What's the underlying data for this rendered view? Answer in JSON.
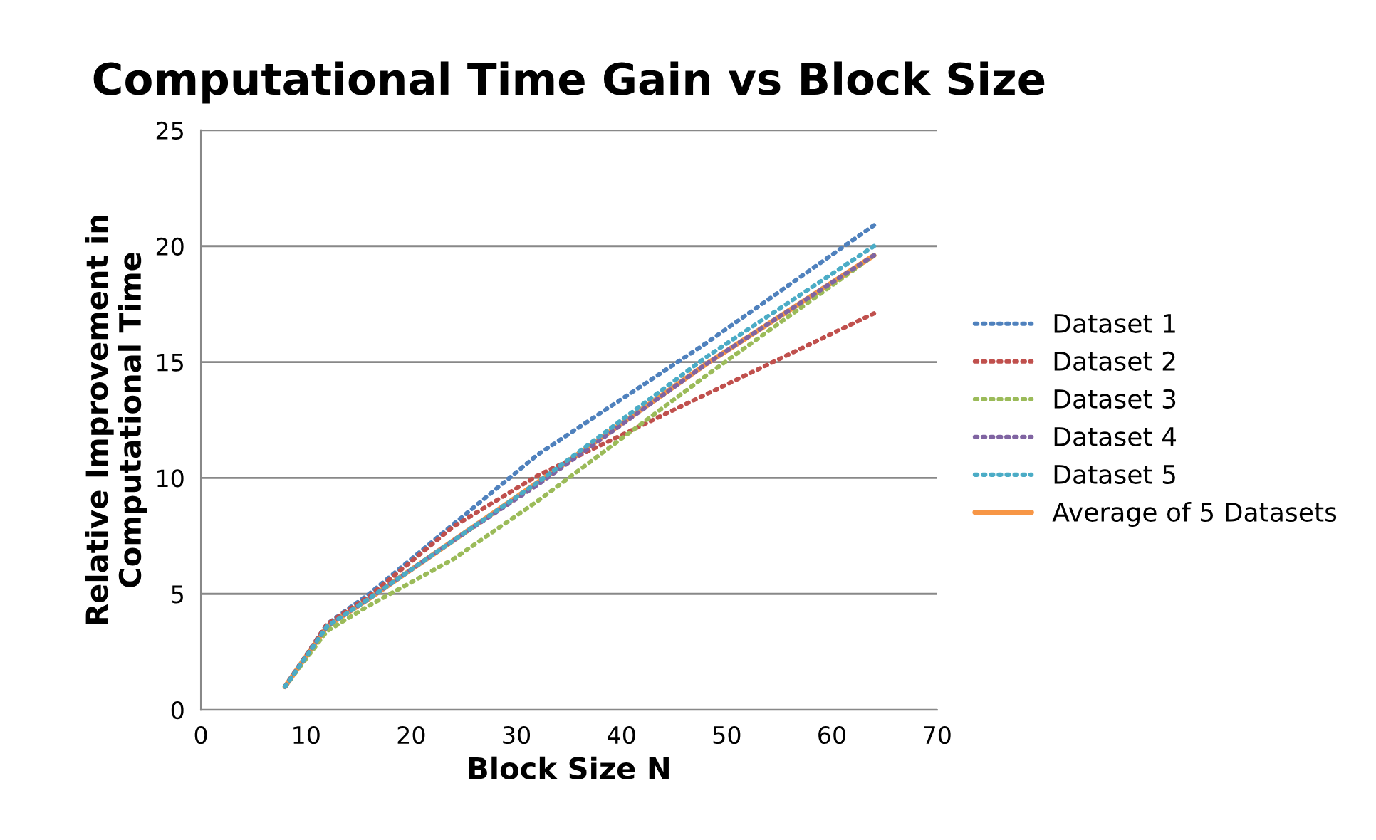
{
  "chart_data": {
    "type": "line",
    "title": "Computational Time Gain vs Block Size",
    "xlabel": "Block Size N",
    "ylabel": "Relative Improvement in\nComputational Time",
    "x": [
      8,
      12,
      16,
      24,
      32,
      48,
      64
    ],
    "xlim": [
      0,
      70
    ],
    "xticks": [
      0,
      10,
      20,
      30,
      40,
      50,
      60,
      70
    ],
    "ylim": [
      0,
      25
    ],
    "yticks": [
      0,
      5,
      10,
      15,
      20,
      25
    ],
    "grid": "y",
    "legend": "right",
    "series": [
      {
        "name": "Dataset 1",
        "color": "#4f81bd",
        "line_style": "dotted",
        "values": [
          1,
          3.7,
          5.0,
          8.0,
          11.0,
          15.8,
          20.9
        ]
      },
      {
        "name": "Dataset 2",
        "color": "#c0504d",
        "line_style": "dotted",
        "values": [
          1,
          3.7,
          4.9,
          7.9,
          10.1,
          13.6,
          17.1
        ]
      },
      {
        "name": "Dataset 3",
        "color": "#9bbb59",
        "line_style": "dotted",
        "values": [
          1,
          3.4,
          4.5,
          6.5,
          9.0,
          14.4,
          19.6
        ]
      },
      {
        "name": "Dataset 4",
        "color": "#8064a2",
        "line_style": "dotted",
        "values": [
          1,
          3.6,
          4.8,
          7.3,
          9.7,
          14.9,
          19.6
        ]
      },
      {
        "name": "Dataset 5",
        "color": "#4bacc6",
        "line_style": "dotted",
        "values": [
          1,
          3.6,
          4.8,
          7.3,
          9.8,
          15.2,
          20.0
        ]
      },
      {
        "name": "Average of 5 Datasets",
        "color": "#f79646",
        "line_style": "solid",
        "values": [
          1,
          3.6,
          4.8,
          7.3,
          9.8,
          14.9,
          19.6
        ]
      }
    ]
  }
}
